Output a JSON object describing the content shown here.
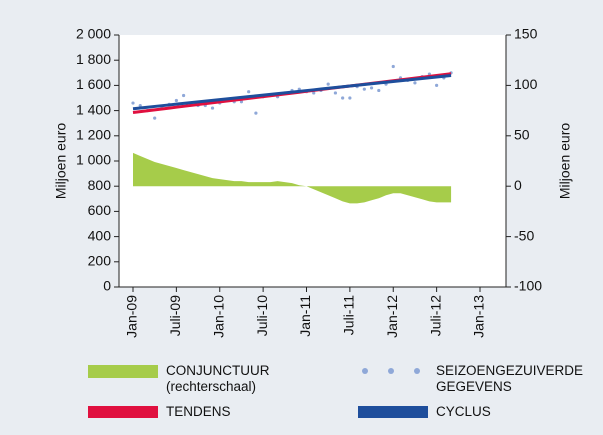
{
  "chart_data": {
    "type": "line",
    "ylabel": "Miljoen euro",
    "y2label": "Miljoen euro",
    "categories": [
      "Jan-09",
      null,
      null,
      null,
      null,
      null,
      "Juli-09",
      null,
      null,
      null,
      null,
      null,
      "Jan-10",
      null,
      null,
      null,
      null,
      null,
      "Juli-10",
      null,
      null,
      null,
      null,
      null,
      "Jan-11",
      null,
      null,
      null,
      null,
      null,
      "Juli-11",
      null,
      null,
      null,
      null,
      null,
      "Jan-12",
      null,
      null,
      null,
      null,
      null,
      "Juli-12",
      null,
      null,
      null,
      null,
      null,
      "Jan-13"
    ],
    "ylim": [
      0,
      2000
    ],
    "yticks": [
      0,
      200,
      400,
      600,
      800,
      {
        "value": 1000,
        "label": "1 000"
      },
      {
        "value": 1200,
        "label": "1 200"
      },
      {
        "value": 1400,
        "label": "1 400"
      },
      {
        "value": 1600,
        "label": "1 600"
      },
      {
        "value": 1800,
        "label": "1 800"
      },
      {
        "value": 2000,
        "label": "2 000"
      }
    ],
    "y2lim": [
      -100,
      150
    ],
    "y2ticks": [
      -100,
      -50,
      0,
      50,
      100,
      150
    ],
    "series": [
      {
        "name": "CONJUNCTUUR (rechterschaal)",
        "kind": "area",
        "axis": "y2",
        "color": "#a6cc4a",
        "values": [
          33,
          30,
          27,
          24,
          22,
          20,
          18,
          16,
          14,
          12,
          10,
          8,
          7,
          6,
          5,
          5,
          4,
          4,
          4,
          4,
          5,
          4,
          3,
          1,
          0,
          -3,
          -6,
          -9,
          -12,
          -15,
          -17,
          -17,
          -16,
          -14,
          -12,
          -9,
          -7,
          -7,
          -9,
          -11,
          -13,
          -15,
          -16,
          -16,
          -16,
          null,
          null,
          null,
          null
        ]
      },
      {
        "name": "SEIZOENGEZUIVERDE GEGEVENS",
        "kind": "dots",
        "color": "#8fa8d8",
        "values": [
          1460,
          1440,
          1400,
          1340,
          1430,
          1450,
          1480,
          1520,
          1450,
          1440,
          1440,
          1420,
          1460,
          1480,
          1470,
          1470,
          1550,
          1380,
          1510,
          1520,
          1510,
          1540,
          1560,
          1570,
          1550,
          1540,
          1560,
          1610,
          1540,
          1500,
          1500,
          1590,
          1570,
          1580,
          1560,
          1610,
          1750,
          1660,
          1640,
          1620,
          1670,
          1690,
          1600,
          1660,
          1700,
          null,
          null,
          null,
          null
        ]
      },
      {
        "name": "TENDENS",
        "kind": "line",
        "color": "#e0103f",
        "values": [
          1385,
          1392,
          1399,
          1406,
          1413,
          1420,
          1427,
          1434,
          1441,
          1448,
          1455,
          1462,
          1469,
          1476,
          1483,
          1490,
          1497,
          1504,
          1511,
          1518,
          1525,
          1532,
          1539,
          1546,
          1553,
          1560,
          1567,
          1574,
          1581,
          1588,
          1595,
          1602,
          1609,
          1616,
          1623,
          1630,
          1637,
          1644,
          1651,
          1658,
          1665,
          1672,
          1679,
          1686,
          1693,
          null,
          null,
          null,
          null
        ]
      },
      {
        "name": "CYCLUS",
        "kind": "line",
        "color": "#1e4e9c",
        "values": [
          1415,
          1421,
          1427,
          1433,
          1439,
          1445,
          1451,
          1457,
          1463,
          1469,
          1475,
          1481,
          1487,
          1493,
          1499,
          1505,
          1511,
          1517,
          1523,
          1529,
          1535,
          1541,
          1547,
          1553,
          1559,
          1565,
          1571,
          1577,
          1583,
          1589,
          1595,
          1601,
          1607,
          1613,
          1619,
          1625,
          1631,
          1637,
          1643,
          1649,
          1655,
          1661,
          1667,
          1673,
          1679,
          null,
          null,
          null,
          null
        ]
      }
    ]
  }
}
